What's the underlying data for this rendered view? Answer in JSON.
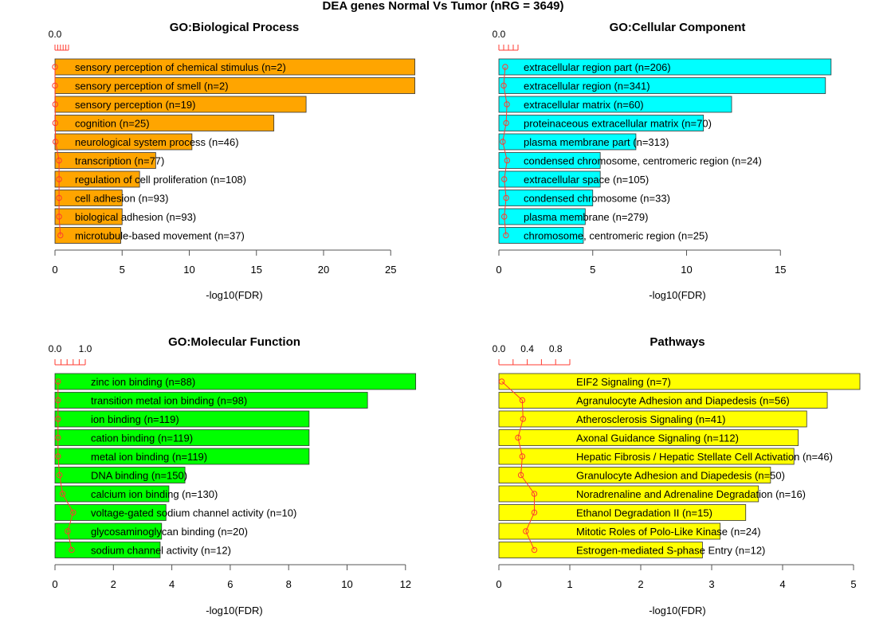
{
  "title": "DEA genes Normal Vs Tumor (nRG = 3649)",
  "chart_data": [
    {
      "type": "bar",
      "orientation": "horizontal",
      "title": "GO:Biological Process",
      "xlabel": "-log10(FDR)",
      "bar_color": "#FFA500",
      "xlim": [
        0,
        27
      ],
      "xticks": [
        0,
        5,
        10,
        15,
        20,
        25
      ],
      "categories": [
        "sensory perception of chemical stimulus (n=2)",
        "sensory perception of smell (n=2)",
        "sensory perception (n=19)",
        "cognition (n=25)",
        "neurological system process (n=46)",
        "transcription (n=77)",
        "regulation of cell proliferation (n=108)",
        "cell adhesion (n=93)",
        "biological adhesion (n=93)",
        "microtubule-based movement (n=37)"
      ],
      "values": [
        26.8,
        26.8,
        18.7,
        16.3,
        10.2,
        7.5,
        6.3,
        5.0,
        5.0,
        4.9
      ],
      "secondary": {
        "color": "#FF3B30",
        "ticks": [
          0.0,
          0.2,
          0.4,
          0.6,
          0.8,
          1.0
        ],
        "tick_labels": [
          "0.0"
        ],
        "values": [
          0.0,
          0.0,
          0.02,
          0.02,
          0.04,
          0.3,
          0.3,
          0.3,
          0.3,
          0.4
        ]
      }
    },
    {
      "type": "bar",
      "orientation": "horizontal",
      "title": "GO:Cellular Component",
      "xlabel": "-log10(FDR)",
      "bar_color": "#00FFFF",
      "xlim": [
        0,
        18
      ],
      "xticks": [
        0,
        5,
        10,
        15
      ],
      "categories": [
        "extracellular region part (n=206)",
        "extracellular region (n=341)",
        "extracellular matrix (n=60)",
        "proteinaceous extracellular matrix (n=70)",
        "plasma membrane part (n=313)",
        "condensed chromosome, centromeric region (n=24)",
        "extracellular space (n=105)",
        "condensed chromosome (n=33)",
        "plasma membrane (n=279)",
        "chromosome, centromeric region (n=25)"
      ],
      "values": [
        17.7,
        17.4,
        12.4,
        10.9,
        7.3,
        5.4,
        5.4,
        5.0,
        4.6,
        4.5
      ],
      "secondary": {
        "color": "#FF3B30",
        "ticks": [
          0.0,
          0.25,
          0.5,
          0.75,
          1.0
        ],
        "tick_labels": [
          "0.0"
        ],
        "values": [
          0.33,
          0.25,
          0.42,
          0.38,
          0.2,
          0.43,
          0.28,
          0.38,
          0.28,
          0.37
        ]
      }
    },
    {
      "type": "bar",
      "orientation": "horizontal",
      "title": "GO:Molecular Function",
      "xlabel": "-log10(FDR)",
      "bar_color": "#00FF00",
      "xlim": [
        0,
        12.4
      ],
      "xticks": [
        0,
        2,
        4,
        6,
        8,
        10,
        12
      ],
      "categories": [
        "zinc ion binding (n=88)",
        "transition metal ion binding (n=98)",
        "ion binding (n=119)",
        "cation binding (n=119)",
        "metal ion binding (n=119)",
        "DNA binding (n=150)",
        "calcium ion binding (n=130)",
        "voltage-gated sodium channel activity (n=10)",
        "glycosaminoglycan binding (n=20)",
        "sodium channel activity (n=12)"
      ],
      "values": [
        12.35,
        10.7,
        8.7,
        8.7,
        8.7,
        4.45,
        3.9,
        3.8,
        3.65,
        3.6
      ],
      "secondary": {
        "color": "#FF3B30",
        "ticks": [
          0.0,
          0.2,
          0.4,
          0.6,
          0.8,
          1.0
        ],
        "tick_labels": [
          "0.0",
          "1.0"
        ],
        "values": [
          0.1,
          0.1,
          0.1,
          0.1,
          0.1,
          0.15,
          0.25,
          0.6,
          0.42,
          0.55
        ]
      }
    },
    {
      "type": "bar",
      "orientation": "horizontal",
      "title": "Pathways",
      "xlabel": "-log10(FDR)",
      "bar_color": "#FFFF00",
      "xlim": [
        0,
        5.1
      ],
      "xticks": [
        0,
        1,
        2,
        3,
        4,
        5
      ],
      "categories": [
        "EIF2 Signaling (n=7)",
        "Agranulocyte Adhesion and Diapedesis (n=56)",
        "Atherosclerosis Signaling (n=41)",
        "Axonal Guidance Signaling (n=112)",
        "Hepatic Fibrosis / Hepatic Stellate Cell Activation (n=46)",
        "Granulocyte Adhesion and Diapedesis (n=50)",
        "Noradrenaline and Adrenaline Degradation (n=16)",
        "Ethanol Degradation II (n=15)",
        "Mitotic Roles of Polo-Like Kinase (n=24)",
        "Estrogen-mediated S-phase Entry (n=12)"
      ],
      "values": [
        5.09,
        4.63,
        4.34,
        4.22,
        4.16,
        3.83,
        3.66,
        3.48,
        3.12,
        2.87
      ],
      "secondary": {
        "color": "#FF3B30",
        "ticks": [
          0.0,
          0.2,
          0.4,
          0.6,
          0.8,
          1.0
        ],
        "tick_labels": [
          "0.0",
          "0.4",
          "0.8"
        ],
        "values": [
          0.04,
          0.33,
          0.34,
          0.27,
          0.33,
          0.31,
          0.5,
          0.5,
          0.38,
          0.5
        ]
      }
    }
  ]
}
